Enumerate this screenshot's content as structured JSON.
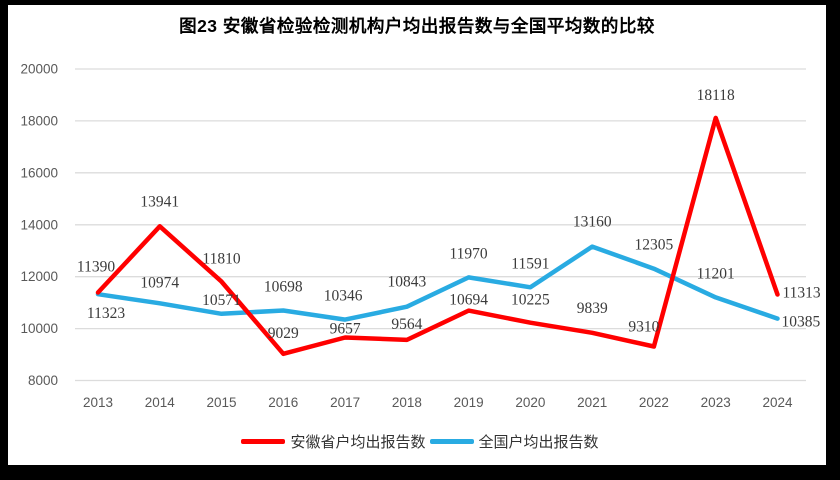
{
  "title": "图23 安徽省检验检测机构户均出报告数与全国平均数的比较",
  "chart_data": {
    "type": "line",
    "title": "图23 安徽省检验检测机构户均出报告数与全国平均数的比较",
    "categories": [
      "2013",
      "2014",
      "2015",
      "2016",
      "2017",
      "2018",
      "2019",
      "2020",
      "2021",
      "2022",
      "2023",
      "2024"
    ],
    "series": [
      {
        "name": "安徽省户均出报告数",
        "color": "#FF0000",
        "values": [
          11390,
          13941,
          11810,
          9029,
          9657,
          9564,
          10694,
          10225,
          9839,
          9310,
          18118,
          11313
        ],
        "label_offsets": [
          [
            -2,
            -21
          ],
          [
            0,
            -20
          ],
          [
            0,
            -18
          ],
          [
            0,
            -16
          ],
          [
            0,
            -4
          ],
          [
            0,
            -11
          ],
          [
            0,
            -6
          ],
          [
            0,
            -18
          ],
          [
            0,
            -20
          ],
          [
            -10,
            -15
          ],
          [
            0,
            -18
          ],
          [
            5,
            3,
            "start"
          ]
        ]
      },
      {
        "name": "全国户均出报告数",
        "color": "#29ABE2",
        "values": [
          11323,
          10974,
          10571,
          10698,
          10346,
          10843,
          11970,
          11591,
          13160,
          12305,
          11201,
          10385
        ],
        "label_offsets": [
          [
            8,
            24
          ],
          [
            0,
            -16
          ],
          [
            0,
            -9
          ],
          [
            0,
            -19
          ],
          [
            -2,
            -19
          ],
          [
            0,
            -20
          ],
          [
            0,
            -19
          ],
          [
            0,
            -19
          ],
          [
            0,
            -20
          ],
          [
            0,
            -19
          ],
          [
            0,
            -19
          ],
          [
            4,
            8,
            "start"
          ]
        ]
      }
    ],
    "ylim": [
      8000,
      20000
    ],
    "yticks": [
      20000,
      18000,
      16000,
      14000,
      12000,
      10000,
      8000
    ],
    "xlabel": "",
    "ylabel": "",
    "grid": true,
    "data_labels": true,
    "legend_position": "bottom"
  },
  "colors": {
    "grid": "#DCDCDC",
    "axis_text": "#595959",
    "data_label_text": "#3B3B3B",
    "title_text": "#000000",
    "frame": "#000000",
    "background": "#FFFFFF"
  }
}
